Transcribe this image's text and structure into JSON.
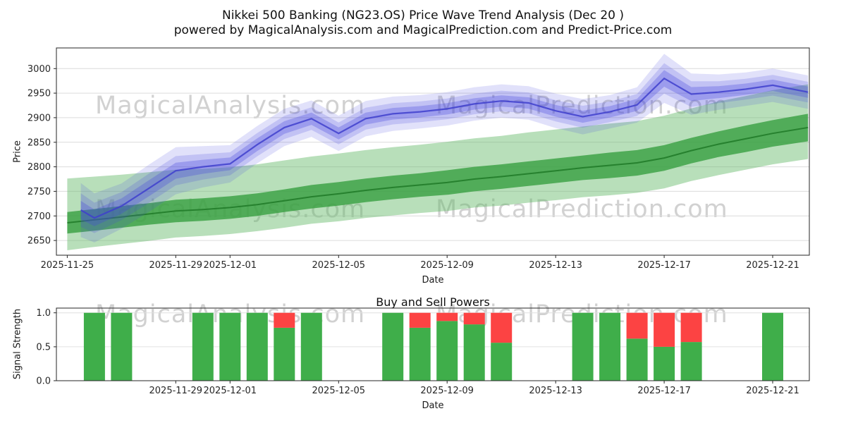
{
  "header": {
    "title": "Nikkei 500 Banking (NG23.OS) Price Wave Trend Analysis (Dec 20 )",
    "subtitle": "powered by MagicalAnalysis.com and MagicalPrediction.com and Predict-Price.com"
  },
  "watermarks": {
    "analysis": "MagicalAnalysis.com",
    "prediction": "MagicalPrediction.com"
  },
  "chart_data": [
    {
      "type": "area",
      "name": "price-wave-trend",
      "xlabel": "Date",
      "ylabel": "Price",
      "xlim": [
        -0.4,
        27.35
      ],
      "ylim": [
        2620,
        3042
      ],
      "grid": "horizontal",
      "yticks": [
        2650,
        2700,
        2750,
        2800,
        2850,
        2900,
        2950,
        3000
      ],
      "xticks": [
        {
          "day": 0,
          "label": "2025-11-25"
        },
        {
          "day": 4,
          "label": "2025-11-29"
        },
        {
          "day": 6,
          "label": "2025-12-01"
        },
        {
          "day": 10,
          "label": "2025-12-05"
        },
        {
          "day": 14,
          "label": "2025-12-09"
        },
        {
          "day": 18,
          "label": "2025-12-13"
        },
        {
          "day": 22,
          "label": "2025-12-17"
        },
        {
          "day": 26,
          "label": "2025-12-21"
        }
      ],
      "series": [
        {
          "name": "green-forecast-band",
          "color_outer": "rgba(97,185,103,0.45)",
          "color_inner": "rgba(52,158,62,0.78)",
          "color_line": "rgba(36,126,44,0.95)",
          "days": [
            0,
            1,
            2,
            3,
            4,
            5,
            6,
            7,
            8,
            9,
            10,
            11,
            12,
            13,
            14,
            15,
            16,
            17,
            18,
            19,
            20,
            21,
            22,
            23,
            24,
            25,
            26,
            27.3
          ],
          "center": [
            2686,
            2692,
            2698,
            2704,
            2710,
            2713,
            2717,
            2723,
            2731,
            2739,
            2745,
            2752,
            2758,
            2763,
            2768,
            2775,
            2780,
            2786,
            2792,
            2798,
            2803,
            2808,
            2818,
            2833,
            2846,
            2857,
            2868,
            2880
          ],
          "inner_hw": [
            22,
            22,
            22,
            22,
            23,
            23,
            23,
            23,
            23,
            24,
            24,
            24,
            24,
            24,
            25,
            25,
            25,
            25,
            25,
            25,
            26,
            26,
            26,
            26,
            26,
            27,
            27,
            28
          ],
          "upper_offset": [
            90,
            88,
            86,
            85,
            84,
            83,
            82,
            82,
            82,
            82,
            82,
            82,
            82,
            82,
            83,
            83,
            83,
            84,
            84,
            84,
            85,
            85,
            86,
            86,
            87,
            87,
            88,
            88
          ],
          "lower_offset": [
            56,
            55,
            55,
            55,
            54,
            54,
            54,
            54,
            55,
            55,
            56,
            56,
            57,
            57,
            58,
            58,
            59,
            59,
            60,
            60,
            61,
            61,
            62,
            62,
            63,
            63,
            63,
            64
          ]
        },
        {
          "name": "blue-wave-band",
          "color": "rgba(68,68,221,OP)",
          "layer_scales": [
            1,
            0.62,
            0.34
          ],
          "layer_opacities": [
            0.16,
            0.2,
            0.3
          ],
          "color_line": "rgba(64,64,205,0.85)",
          "days": [
            0.5,
            1,
            2,
            3,
            4,
            5,
            6,
            7,
            8,
            9,
            10,
            11,
            12,
            13,
            14,
            15,
            16,
            17,
            18,
            19,
            20,
            21,
            22,
            23,
            24,
            25,
            26,
            27.3
          ],
          "center": [
            2712,
            2696,
            2720,
            2756,
            2792,
            2800,
            2806,
            2845,
            2880,
            2898,
            2868,
            2898,
            2908,
            2912,
            2918,
            2928,
            2934,
            2930,
            2914,
            2902,
            2912,
            2926,
            2980,
            2948,
            2952,
            2958,
            2966,
            2952
          ],
          "outer_hw": [
            55,
            50,
            46,
            48,
            48,
            42,
            38,
            38,
            38,
            37,
            36,
            36,
            35,
            34,
            34,
            34,
            34,
            34,
            35,
            36,
            34,
            36,
            50,
            42,
            36,
            34,
            34,
            34
          ]
        }
      ]
    },
    {
      "type": "bar",
      "name": "buy-sell-powers",
      "title": "Buy and Sell Powers",
      "xlabel": "Date",
      "ylabel": "Signal Strength",
      "xlim": [
        -0.4,
        27.35
      ],
      "ylim": [
        0,
        1.07
      ],
      "yticks": [
        0,
        0.5,
        1
      ],
      "ytick_labels": [
        "0.0",
        "0.5",
        "1.0"
      ],
      "xticks": [
        {
          "day": 4,
          "label": "2025-11-29"
        },
        {
          "day": 6,
          "label": "2025-12-01"
        },
        {
          "day": 10,
          "label": "2025-12-05"
        },
        {
          "day": 14,
          "label": "2025-12-09"
        },
        {
          "day": 18,
          "label": "2025-12-13"
        },
        {
          "day": 22,
          "label": "2025-12-17"
        },
        {
          "day": 26,
          "label": "2025-12-21"
        }
      ],
      "bar_width_days": 0.78,
      "colors": {
        "buy": "#3fae4a",
        "sell": "#fc4343"
      },
      "bars": [
        {
          "date": "2025-11-26",
          "day": 1,
          "buy": 1.0,
          "sell": 0.0
        },
        {
          "date": "2025-11-27",
          "day": 2,
          "buy": 1.0,
          "sell": 0.0
        },
        {
          "date": "2025-11-30",
          "day": 5,
          "buy": 1.0,
          "sell": 0.0
        },
        {
          "date": "2025-12-01",
          "day": 6,
          "buy": 1.0,
          "sell": 0.0
        },
        {
          "date": "2025-12-02",
          "day": 7,
          "buy": 1.0,
          "sell": 0.0
        },
        {
          "date": "2025-12-03",
          "day": 8,
          "buy": 0.78,
          "sell": 0.22
        },
        {
          "date": "2025-12-04",
          "day": 9,
          "buy": 1.0,
          "sell": 0.0
        },
        {
          "date": "2025-12-07",
          "day": 12,
          "buy": 1.0,
          "sell": 0.0
        },
        {
          "date": "2025-12-08",
          "day": 13,
          "buy": 0.78,
          "sell": 0.22
        },
        {
          "date": "2025-12-09",
          "day": 14,
          "buy": 0.88,
          "sell": 0.12
        },
        {
          "date": "2025-12-10",
          "day": 15,
          "buy": 0.83,
          "sell": 0.17
        },
        {
          "date": "2025-12-11",
          "day": 16,
          "buy": 0.56,
          "sell": 0.44
        },
        {
          "date": "2025-12-14",
          "day": 19,
          "buy": 1.0,
          "sell": 0.0
        },
        {
          "date": "2025-12-15",
          "day": 20,
          "buy": 1.0,
          "sell": 0.0
        },
        {
          "date": "2025-12-16",
          "day": 21,
          "buy": 0.62,
          "sell": 0.38
        },
        {
          "date": "2025-12-17",
          "day": 22,
          "buy": 0.5,
          "sell": 0.5
        },
        {
          "date": "2025-12-18",
          "day": 23,
          "buy": 0.57,
          "sell": 0.43
        },
        {
          "date": "2025-12-21",
          "day": 26,
          "buy": 1.0,
          "sell": 0.0
        }
      ]
    }
  ]
}
